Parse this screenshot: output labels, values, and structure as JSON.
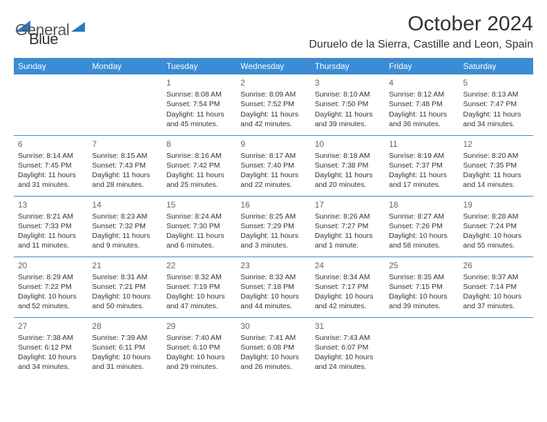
{
  "brand": {
    "part1": "General",
    "part2": "Blue"
  },
  "title": "October 2024",
  "location": "Duruelo de la Sierra, Castille and Leon, Spain",
  "colors": {
    "header_bg": "#3b8cd4",
    "header_text": "#ffffff",
    "divider": "#3b8cd4",
    "text": "#333333",
    "daynum": "#666666",
    "brand_gray": "#555555",
    "brand_blue": "#2a7ac0",
    "background": "#ffffff"
  },
  "day_headers": [
    "Sunday",
    "Monday",
    "Tuesday",
    "Wednesday",
    "Thursday",
    "Friday",
    "Saturday"
  ],
  "weeks": [
    [
      null,
      null,
      {
        "n": "1",
        "sr": "Sunrise: 8:08 AM",
        "ss": "Sunset: 7:54 PM",
        "dl": "Daylight: 11 hours and 45 minutes."
      },
      {
        "n": "2",
        "sr": "Sunrise: 8:09 AM",
        "ss": "Sunset: 7:52 PM",
        "dl": "Daylight: 11 hours and 42 minutes."
      },
      {
        "n": "3",
        "sr": "Sunrise: 8:10 AM",
        "ss": "Sunset: 7:50 PM",
        "dl": "Daylight: 11 hours and 39 minutes."
      },
      {
        "n": "4",
        "sr": "Sunrise: 8:12 AM",
        "ss": "Sunset: 7:48 PM",
        "dl": "Daylight: 11 hours and 36 minutes."
      },
      {
        "n": "5",
        "sr": "Sunrise: 8:13 AM",
        "ss": "Sunset: 7:47 PM",
        "dl": "Daylight: 11 hours and 34 minutes."
      }
    ],
    [
      {
        "n": "6",
        "sr": "Sunrise: 8:14 AM",
        "ss": "Sunset: 7:45 PM",
        "dl": "Daylight: 11 hours and 31 minutes."
      },
      {
        "n": "7",
        "sr": "Sunrise: 8:15 AM",
        "ss": "Sunset: 7:43 PM",
        "dl": "Daylight: 11 hours and 28 minutes."
      },
      {
        "n": "8",
        "sr": "Sunrise: 8:16 AM",
        "ss": "Sunset: 7:42 PM",
        "dl": "Daylight: 11 hours and 25 minutes."
      },
      {
        "n": "9",
        "sr": "Sunrise: 8:17 AM",
        "ss": "Sunset: 7:40 PM",
        "dl": "Daylight: 11 hours and 22 minutes."
      },
      {
        "n": "10",
        "sr": "Sunrise: 8:18 AM",
        "ss": "Sunset: 7:38 PM",
        "dl": "Daylight: 11 hours and 20 minutes."
      },
      {
        "n": "11",
        "sr": "Sunrise: 8:19 AM",
        "ss": "Sunset: 7:37 PM",
        "dl": "Daylight: 11 hours and 17 minutes."
      },
      {
        "n": "12",
        "sr": "Sunrise: 8:20 AM",
        "ss": "Sunset: 7:35 PM",
        "dl": "Daylight: 11 hours and 14 minutes."
      }
    ],
    [
      {
        "n": "13",
        "sr": "Sunrise: 8:21 AM",
        "ss": "Sunset: 7:33 PM",
        "dl": "Daylight: 11 hours and 11 minutes."
      },
      {
        "n": "14",
        "sr": "Sunrise: 8:23 AM",
        "ss": "Sunset: 7:32 PM",
        "dl": "Daylight: 11 hours and 9 minutes."
      },
      {
        "n": "15",
        "sr": "Sunrise: 8:24 AM",
        "ss": "Sunset: 7:30 PM",
        "dl": "Daylight: 11 hours and 6 minutes."
      },
      {
        "n": "16",
        "sr": "Sunrise: 8:25 AM",
        "ss": "Sunset: 7:29 PM",
        "dl": "Daylight: 11 hours and 3 minutes."
      },
      {
        "n": "17",
        "sr": "Sunrise: 8:26 AM",
        "ss": "Sunset: 7:27 PM",
        "dl": "Daylight: 11 hours and 1 minute."
      },
      {
        "n": "18",
        "sr": "Sunrise: 8:27 AM",
        "ss": "Sunset: 7:26 PM",
        "dl": "Daylight: 10 hours and 58 minutes."
      },
      {
        "n": "19",
        "sr": "Sunrise: 8:28 AM",
        "ss": "Sunset: 7:24 PM",
        "dl": "Daylight: 10 hours and 55 minutes."
      }
    ],
    [
      {
        "n": "20",
        "sr": "Sunrise: 8:29 AM",
        "ss": "Sunset: 7:22 PM",
        "dl": "Daylight: 10 hours and 52 minutes."
      },
      {
        "n": "21",
        "sr": "Sunrise: 8:31 AM",
        "ss": "Sunset: 7:21 PM",
        "dl": "Daylight: 10 hours and 50 minutes."
      },
      {
        "n": "22",
        "sr": "Sunrise: 8:32 AM",
        "ss": "Sunset: 7:19 PM",
        "dl": "Daylight: 10 hours and 47 minutes."
      },
      {
        "n": "23",
        "sr": "Sunrise: 8:33 AM",
        "ss": "Sunset: 7:18 PM",
        "dl": "Daylight: 10 hours and 44 minutes."
      },
      {
        "n": "24",
        "sr": "Sunrise: 8:34 AM",
        "ss": "Sunset: 7:17 PM",
        "dl": "Daylight: 10 hours and 42 minutes."
      },
      {
        "n": "25",
        "sr": "Sunrise: 8:35 AM",
        "ss": "Sunset: 7:15 PM",
        "dl": "Daylight: 10 hours and 39 minutes."
      },
      {
        "n": "26",
        "sr": "Sunrise: 8:37 AM",
        "ss": "Sunset: 7:14 PM",
        "dl": "Daylight: 10 hours and 37 minutes."
      }
    ],
    [
      {
        "n": "27",
        "sr": "Sunrise: 7:38 AM",
        "ss": "Sunset: 6:12 PM",
        "dl": "Daylight: 10 hours and 34 minutes."
      },
      {
        "n": "28",
        "sr": "Sunrise: 7:39 AM",
        "ss": "Sunset: 6:11 PM",
        "dl": "Daylight: 10 hours and 31 minutes."
      },
      {
        "n": "29",
        "sr": "Sunrise: 7:40 AM",
        "ss": "Sunset: 6:10 PM",
        "dl": "Daylight: 10 hours and 29 minutes."
      },
      {
        "n": "30",
        "sr": "Sunrise: 7:41 AM",
        "ss": "Sunset: 6:08 PM",
        "dl": "Daylight: 10 hours and 26 minutes."
      },
      {
        "n": "31",
        "sr": "Sunrise: 7:43 AM",
        "ss": "Sunset: 6:07 PM",
        "dl": "Daylight: 10 hours and 24 minutes."
      },
      null,
      null
    ]
  ]
}
